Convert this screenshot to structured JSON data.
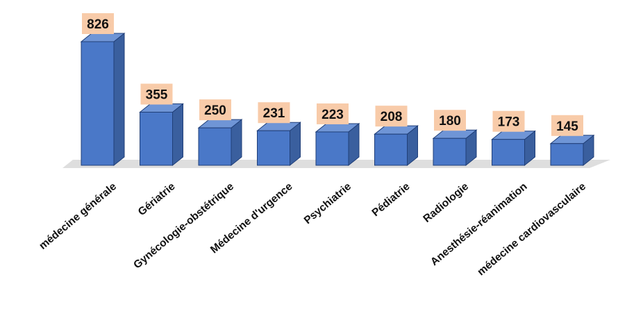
{
  "chart_data": {
    "type": "bar",
    "categories": [
      "médecine générale",
      "Gériatrie",
      "Gynécologie-obstétrique",
      "Médecine d'urgence",
      "Psychiatrie",
      "Pédiatrie",
      "Radiologie",
      "Anesthésie-réanimation",
      "médecine cardiovasculaire"
    ],
    "values": [
      826,
      355,
      250,
      231,
      223,
      208,
      180,
      173,
      145
    ],
    "data_labels": [
      "826",
      "355",
      "250",
      "231",
      "223",
      "208",
      "180",
      "173",
      "145"
    ],
    "title": "",
    "xlabel": "",
    "ylabel": "",
    "ylim": [
      0,
      900
    ],
    "grid": false,
    "legend": "none",
    "colors": {
      "bar_front": "#4a78c8",
      "bar_side": "#3a5f9e",
      "bar_top": "#6f95d6",
      "bar_edge": "#203f78",
      "label_bg": "#f8cba9",
      "floor": "#dedede"
    }
  }
}
